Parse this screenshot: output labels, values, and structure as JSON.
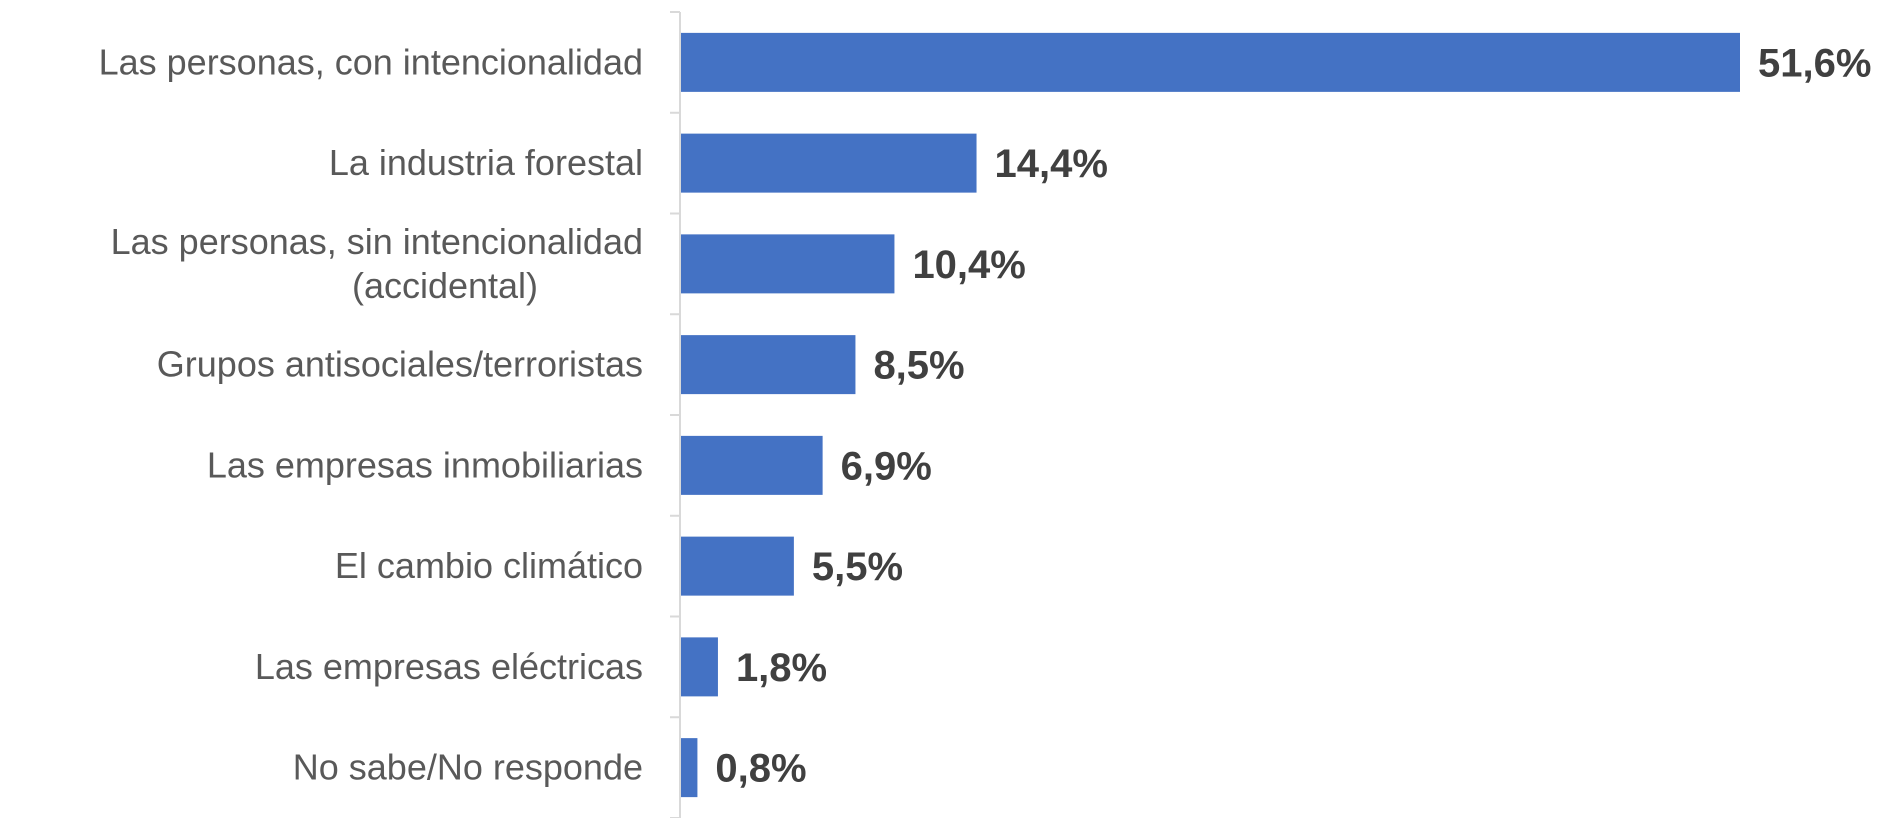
{
  "chart_data": {
    "type": "bar",
    "orientation": "horizontal",
    "title": "",
    "xlabel": "",
    "ylabel": "",
    "categories": [
      "Las personas, con intencionalidad",
      "La industria forestal",
      "Las personas, sin intencionalidad (accidental)",
      "Grupos antisociales/terroristas",
      "Las empresas inmobiliarias",
      "El cambio climático",
      "Las empresas eléctricas",
      "No sabe/No responde"
    ],
    "category_lines": [
      [
        "Las personas, con intencionalidad"
      ],
      [
        "La industria forestal"
      ],
      [
        "Las personas, sin intencionalidad",
        "(accidental)"
      ],
      [
        "Grupos antisociales/terroristas"
      ],
      [
        "Las empresas inmobiliarias"
      ],
      [
        "El cambio climático"
      ],
      [
        "Las empresas eléctricas"
      ],
      [
        "No sabe/No responde"
      ]
    ],
    "values": [
      51.6,
      14.4,
      10.4,
      8.5,
      6.9,
      5.5,
      1.8,
      0.8
    ],
    "value_labels": [
      "51,6%",
      "14,4%",
      "10,4%",
      "8,5%",
      "6,9%",
      "5,5%",
      "1,8%",
      "0,8%"
    ],
    "xlim": [
      0,
      51.6
    ],
    "grid": false,
    "legend": "none",
    "bar_color": "#4472C4",
    "axis_color": "#D9D9D9",
    "label_color": "#595959",
    "value_color": "#404040"
  }
}
